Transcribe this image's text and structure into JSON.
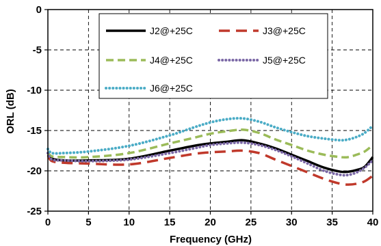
{
  "chart_data": {
    "type": "line",
    "title": "",
    "xlabel": "Frequency (GHz)",
    "ylabel": "ORL (dB)",
    "xlim": [
      0,
      40
    ],
    "ylim": [
      -25,
      0
    ],
    "xticks": [
      0,
      5,
      10,
      15,
      20,
      25,
      30,
      35,
      40
    ],
    "yticks": [
      0,
      -5,
      -10,
      -15,
      -20,
      -25
    ],
    "grid": "dashed",
    "legend_position": "top-right",
    "series": [
      {
        "name": "J2@+25C",
        "color": "#000000",
        "dash": "solid",
        "x": [
          0,
          0.5,
          2,
          5,
          10,
          15,
          18,
          20,
          22,
          24,
          26,
          28,
          30,
          32,
          34,
          36,
          37,
          38,
          39,
          40
        ],
        "y": [
          -18.0,
          -18.5,
          -18.7,
          -18.7,
          -18.5,
          -17.5,
          -16.9,
          -16.6,
          -16.4,
          -16.2,
          -16.6,
          -17.2,
          -18.0,
          -18.8,
          -19.6,
          -20.1,
          -20.1,
          -19.9,
          -19.5,
          -18.3
        ]
      },
      {
        "name": "J3@+25C",
        "color": "#c0392b",
        "dash": "long-dash",
        "x": [
          0,
          0.5,
          2,
          5,
          10,
          15,
          18,
          20,
          22,
          24,
          26,
          28,
          30,
          32,
          34,
          36,
          37,
          38,
          39,
          40
        ],
        "y": [
          -18.1,
          -18.8,
          -19.0,
          -19.1,
          -19.2,
          -18.4,
          -17.9,
          -17.7,
          -17.6,
          -17.5,
          -17.8,
          -18.6,
          -19.4,
          -20.2,
          -21.0,
          -21.6,
          -21.7,
          -21.6,
          -21.3,
          -20.6
        ]
      },
      {
        "name": "J4@+25C",
        "color": "#9bbb59",
        "dash": "dash",
        "x": [
          0,
          0.5,
          2,
          5,
          10,
          15,
          18,
          20,
          22,
          24,
          26,
          28,
          30,
          32,
          34,
          36,
          37,
          38,
          39,
          40
        ],
        "y": [
          -17.7,
          -18.2,
          -18.3,
          -18.3,
          -17.8,
          -16.6,
          -15.9,
          -15.4,
          -15.1,
          -14.9,
          -15.3,
          -16.1,
          -16.8,
          -17.5,
          -18.0,
          -18.3,
          -18.3,
          -18.0,
          -17.6,
          -16.8
        ]
      },
      {
        "name": "J5@+25C",
        "color": "#7b68a6",
        "dash": "dot",
        "x": [
          0,
          0.5,
          2,
          5,
          10,
          15,
          18,
          20,
          22,
          24,
          26,
          28,
          30,
          32,
          34,
          36,
          37,
          38,
          39,
          40
        ],
        "y": [
          -17.8,
          -18.6,
          -18.7,
          -18.8,
          -18.6,
          -17.8,
          -17.2,
          -16.8,
          -16.6,
          -16.5,
          -16.8,
          -17.4,
          -18.2,
          -19.1,
          -20.0,
          -20.5,
          -20.5,
          -20.2,
          -19.6,
          -18.7
        ]
      },
      {
        "name": "J6@+25C",
        "color": "#4bacc6",
        "dash": "dot",
        "x": [
          0,
          0.5,
          2,
          5,
          10,
          15,
          18,
          20,
          22,
          24,
          26,
          28,
          30,
          32,
          34,
          36,
          37,
          38,
          39,
          40
        ],
        "y": [
          -17.3,
          -17.8,
          -17.8,
          -17.6,
          -16.9,
          -15.6,
          -14.6,
          -14.0,
          -13.6,
          -13.5,
          -13.9,
          -14.6,
          -15.2,
          -15.7,
          -16.0,
          -16.2,
          -16.1,
          -15.8,
          -15.3,
          -14.4
        ]
      }
    ]
  }
}
